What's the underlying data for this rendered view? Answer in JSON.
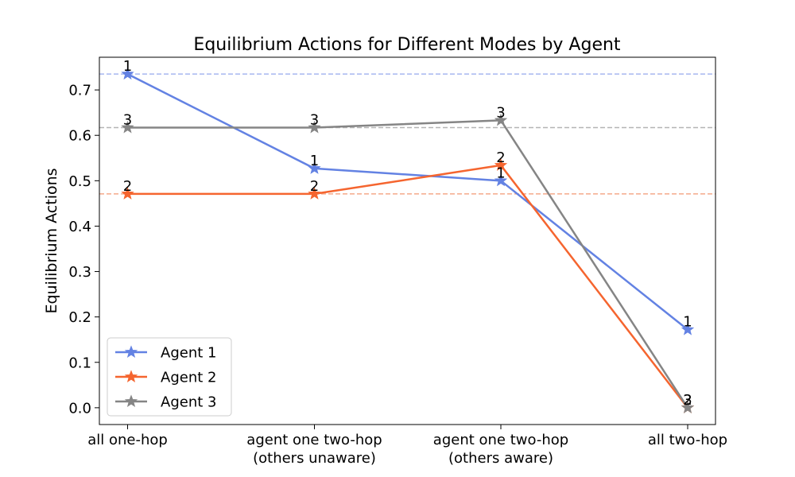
{
  "chart_data": {
    "type": "line",
    "title": "Equilibrium Actions for Different Modes by Agent",
    "xlabel": "",
    "ylabel": "Equilibrium Actions",
    "categories": [
      [
        "all one-hop"
      ],
      [
        "agent one two-hop",
        "(others unaware)"
      ],
      [
        "agent one two-hop",
        "(others aware)"
      ],
      [
        "all two-hop"
      ]
    ],
    "ylim": [
      -0.037,
      0.772
    ],
    "yticks": [
      0.0,
      0.1,
      0.2,
      0.3,
      0.4,
      0.5,
      0.6,
      0.7
    ],
    "ytick_labels": [
      "0.0",
      "0.1",
      "0.2",
      "0.3",
      "0.4",
      "0.5",
      "0.6",
      "0.7"
    ],
    "grid": false,
    "legend_position": "lower-left",
    "series": [
      {
        "name": "Agent 1",
        "point_label": "1",
        "color": "#6382e3",
        "values": [
          0.735,
          0.527,
          0.5,
          0.172
        ],
        "reference_line": 0.735,
        "reference_color": "#a7b8f0"
      },
      {
        "name": "Agent 2",
        "point_label": "2",
        "color": "#f5652f",
        "values": [
          0.471,
          0.471,
          0.534,
          0.0
        ],
        "reference_line": 0.471,
        "reference_color": "#f5a98a"
      },
      {
        "name": "Agent 3",
        "point_label": "3",
        "color": "#858585",
        "values": [
          0.617,
          0.617,
          0.633,
          0.0
        ],
        "reference_line": 0.617,
        "reference_color": "#b5b5b5"
      }
    ]
  }
}
